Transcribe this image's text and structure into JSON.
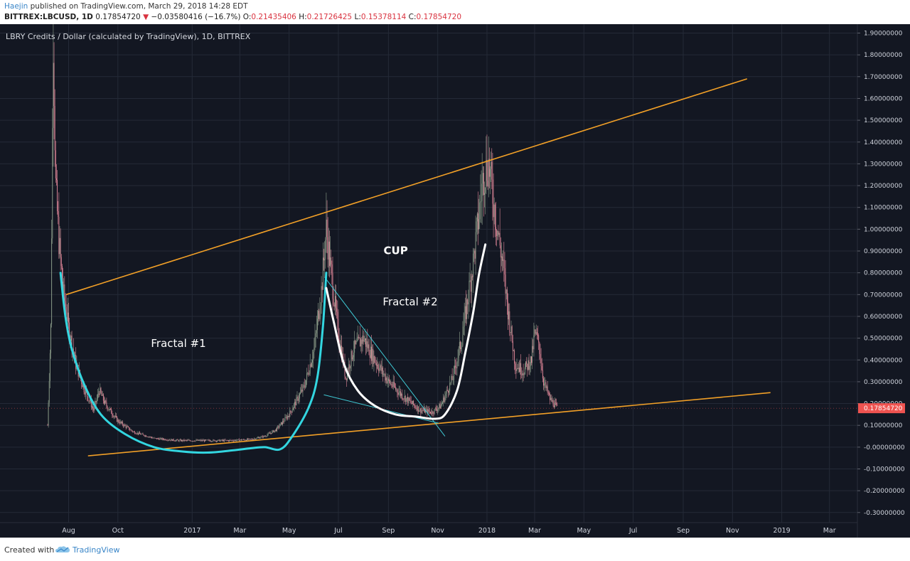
{
  "header": {
    "author": "Haejin",
    "published_text": "published on TradingView.com, March 29, 2018 14:28 EDT",
    "symbol": "BITTREX:LBCUSD, 1D",
    "last_price": "0.17854720",
    "change": "−0.03580416 (−16.7%)",
    "o_label": "O:",
    "o_value": "0.21435406",
    "h_label": "H:",
    "h_value": "0.21726425",
    "l_label": "L:",
    "l_value": "0.15378114",
    "c_label": "C:",
    "c_value": "0.17854720"
  },
  "colors": {
    "background": "#131722",
    "grid": "#242a37",
    "up_candle": "#8fa08c",
    "down_candle": "#e3889a",
    "trendline": "#f2a027",
    "cyan_curve": "#33d6e0",
    "white_curve": "#ffffff",
    "thin_line": "#3fc8d3",
    "price_tag": "#ef5350"
  },
  "footer": {
    "created_with": "Created with",
    "brand": "TradingView"
  },
  "chart_data": {
    "type": "candlestick",
    "title": "LBRY Credits / Dollar (calculated by TradingView), 1D, BITTREX",
    "ylim": [
      -0.33,
      1.93
    ],
    "y_ticks": [
      1.9,
      1.8,
      1.7,
      1.6,
      1.5,
      1.4,
      1.3,
      1.2,
      1.1,
      1.0,
      0.9,
      0.8,
      0.7,
      0.6,
      0.5,
      0.4,
      0.3,
      0.2,
      0.1,
      -0.0,
      -0.1,
      -0.2,
      -0.3
    ],
    "y_tick_labels": [
      "1.90000000",
      "1.80000000",
      "1.70000000",
      "1.60000000",
      "1.50000000",
      "1.40000000",
      "1.30000000",
      "1.20000000",
      "1.10000000",
      "1.00000000",
      "0.90000000",
      "0.80000000",
      "0.70000000",
      "0.60000000",
      "0.50000000",
      "0.40000000",
      "0.30000000",
      "0.20000000",
      "0.10000000",
      "-0.00000000",
      "-0.10000000",
      "-0.20000000",
      "-0.30000000"
    ],
    "x_ticks": [
      {
        "label": "Aug",
        "date": "2016-08-01"
      },
      {
        "label": "Oct",
        "date": "2016-10-01"
      },
      {
        "label": "2017",
        "date": "2017-01-01"
      },
      {
        "label": "Mar",
        "date": "2017-03-01"
      },
      {
        "label": "May",
        "date": "2017-05-01"
      },
      {
        "label": "Jul",
        "date": "2017-07-01"
      },
      {
        "label": "Sep",
        "date": "2017-09-01"
      },
      {
        "label": "Nov",
        "date": "2017-11-01"
      },
      {
        "label": "2018",
        "date": "2018-01-01"
      },
      {
        "label": "Mar",
        "date": "2018-03-01"
      },
      {
        "label": "May",
        "date": "2018-05-01"
      },
      {
        "label": "Jul",
        "date": "2018-07-01"
      },
      {
        "label": "Sep",
        "date": "2018-09-01"
      },
      {
        "label": "Nov",
        "date": "2018-11-01"
      },
      {
        "label": "2019",
        "date": "2019-01-01"
      },
      {
        "label": "Mar",
        "date": "2019-03-01"
      }
    ],
    "price_path": [
      [
        "2016-07-06",
        0.1
      ],
      [
        "2016-07-10",
        0.55
      ],
      [
        "2016-07-13",
        1.9
      ],
      [
        "2016-07-16",
        1.2
      ],
      [
        "2016-07-20",
        0.95
      ],
      [
        "2016-07-25",
        0.72
      ],
      [
        "2016-08-01",
        0.55
      ],
      [
        "2016-08-10",
        0.38
      ],
      [
        "2016-08-20",
        0.27
      ],
      [
        "2016-09-01",
        0.17
      ],
      [
        "2016-09-08",
        0.26
      ],
      [
        "2016-09-15",
        0.2
      ],
      [
        "2016-10-01",
        0.12
      ],
      [
        "2016-10-20",
        0.07
      ],
      [
        "2016-11-15",
        0.04
      ],
      [
        "2016-12-15",
        0.03
      ],
      [
        "2017-01-15",
        0.03
      ],
      [
        "2017-02-15",
        0.03
      ],
      [
        "2017-03-15",
        0.035
      ],
      [
        "2017-04-01",
        0.05
      ],
      [
        "2017-04-15",
        0.08
      ],
      [
        "2017-05-01",
        0.15
      ],
      [
        "2017-05-20",
        0.28
      ],
      [
        "2017-06-01",
        0.45
      ],
      [
        "2017-06-10",
        0.72
      ],
      [
        "2017-06-16",
        1.0
      ],
      [
        "2017-06-22",
        0.8
      ],
      [
        "2017-06-30",
        0.55
      ],
      [
        "2017-07-10",
        0.32
      ],
      [
        "2017-07-20",
        0.45
      ],
      [
        "2017-08-01",
        0.5
      ],
      [
        "2017-08-15",
        0.4
      ],
      [
        "2017-09-01",
        0.3
      ],
      [
        "2017-09-20",
        0.23
      ],
      [
        "2017-10-10",
        0.17
      ],
      [
        "2017-10-25",
        0.16
      ],
      [
        "2017-11-05",
        0.19
      ],
      [
        "2017-11-20",
        0.32
      ],
      [
        "2017-12-01",
        0.5
      ],
      [
        "2017-12-15",
        0.85
      ],
      [
        "2017-12-28",
        1.25
      ],
      [
        "2018-01-03",
        1.3
      ],
      [
        "2018-01-10",
        1.1
      ],
      [
        "2018-01-20",
        0.85
      ],
      [
        "2018-01-28",
        0.6
      ],
      [
        "2018-02-05",
        0.38
      ],
      [
        "2018-02-15",
        0.35
      ],
      [
        "2018-02-25",
        0.4
      ],
      [
        "2018-03-01",
        0.52
      ],
      [
        "2018-03-06",
        0.48
      ],
      [
        "2018-03-12",
        0.3
      ],
      [
        "2018-03-20",
        0.22
      ],
      [
        "2018-03-29",
        0.18
      ]
    ],
    "last_price": 0.1785472,
    "last_price_label": "0.17854720",
    "trendlines": [
      {
        "name": "upper-resistance",
        "from": [
          "2016-07-29",
          0.7
        ],
        "to": [
          "2018-11-19",
          1.69
        ],
        "color": "#f2a027"
      },
      {
        "name": "lower-support",
        "from": [
          "2016-08-25",
          -0.04
        ],
        "to": [
          "2018-12-18",
          0.25
        ],
        "color": "#f2a027"
      },
      {
        "name": "fractal-1-downtrend",
        "from": [
          "2017-06-14",
          0.78
        ],
        "to": [
          "2017-11-10",
          0.05
        ],
        "color": "#3fc8d3"
      },
      {
        "name": "fractal-1-base",
        "from": [
          "2017-06-13",
          0.24
        ],
        "to": [
          "2017-11-02",
          0.11
        ],
        "color": "#3fc8d3"
      }
    ],
    "curves": [
      {
        "name": "fractal-1-curve",
        "color": "#33d6e0",
        "points": [
          [
            "2016-07-22",
            0.8
          ],
          [
            "2016-07-28",
            0.6
          ],
          [
            "2016-08-05",
            0.45
          ],
          [
            "2016-08-20",
            0.29
          ],
          [
            "2016-09-10",
            0.15
          ],
          [
            "2016-10-10",
            0.06
          ],
          [
            "2016-11-15",
            0.0
          ],
          [
            "2016-12-20",
            -0.02
          ],
          [
            "2017-01-20",
            -0.025
          ],
          [
            "2017-02-20",
            -0.015
          ],
          [
            "2017-03-15",
            -0.005
          ],
          [
            "2017-04-01",
            0.0
          ],
          [
            "2017-04-20",
            -0.01
          ],
          [
            "2017-05-05",
            0.05
          ],
          [
            "2017-05-25",
            0.18
          ],
          [
            "2017-06-05",
            0.32
          ],
          [
            "2017-06-12",
            0.56
          ],
          [
            "2017-06-16",
            0.8
          ]
        ]
      },
      {
        "name": "fractal-2-curve",
        "color": "#ffffff",
        "points": [
          [
            "2017-06-16",
            0.73
          ],
          [
            "2017-06-25",
            0.58
          ],
          [
            "2017-07-08",
            0.38
          ],
          [
            "2017-07-25",
            0.26
          ],
          [
            "2017-08-15",
            0.19
          ],
          [
            "2017-09-10",
            0.15
          ],
          [
            "2017-10-05",
            0.14
          ],
          [
            "2017-10-28",
            0.13
          ],
          [
            "2017-11-10",
            0.15
          ],
          [
            "2017-11-25",
            0.26
          ],
          [
            "2017-12-05",
            0.43
          ],
          [
            "2017-12-15",
            0.62
          ],
          [
            "2017-12-22",
            0.79
          ],
          [
            "2017-12-30",
            0.93
          ]
        ]
      }
    ],
    "annotations": [
      {
        "text": "CUP",
        "date": "2017-09-10",
        "value": 0.885,
        "size": 15,
        "weight": "bold"
      },
      {
        "text": "Fractal #2",
        "date": "2017-09-28",
        "value": 0.65,
        "size": 15,
        "weight": "normal"
      },
      {
        "text": "Fractal #1",
        "date": "2016-12-15",
        "value": 0.46,
        "size": 15,
        "weight": "normal"
      }
    ]
  }
}
